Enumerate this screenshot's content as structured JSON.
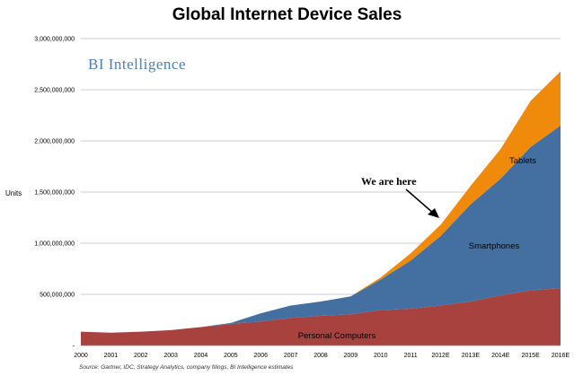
{
  "chart_data": {
    "type": "area",
    "stacked": true,
    "title": "Global Internet Device Sales",
    "ylabel": "Units",
    "xlabel": "",
    "watermark": "BI Intelligence",
    "source": "Source: Gartner, IDC, Strategy Analytics, company filings, BI Intelligence estimates",
    "annotation": "We are here",
    "annotation_target": "2012E",
    "categories": [
      "2000",
      "2001",
      "2002",
      "2003",
      "2004",
      "2005",
      "2006",
      "2007",
      "2008",
      "2009",
      "2010",
      "2011",
      "2012E",
      "2013E",
      "2014E",
      "2015E",
      "2016E"
    ],
    "y_ticks": [
      {
        "value": 0,
        "label": "-"
      },
      {
        "value": 500000000,
        "label": "500,000,000"
      },
      {
        "value": 1000000000,
        "label": "1,000,000,000"
      },
      {
        "value": 1500000000,
        "label": "1,500,000,000"
      },
      {
        "value": 2000000000,
        "label": "2,000,000,000"
      },
      {
        "value": 2500000000,
        "label": "2,500,000,000"
      },
      {
        "value": 3000000000,
        "label": "3,000,000,000"
      }
    ],
    "ylim": [
      0,
      3000000000
    ],
    "grid": true,
    "series": [
      {
        "name": "Personal Computers",
        "color": "#a8423f",
        "values": [
          135000000,
          125000000,
          135000000,
          150000000,
          180000000,
          210000000,
          235000000,
          270000000,
          290000000,
          305000000,
          345000000,
          360000000,
          390000000,
          430000000,
          490000000,
          540000000,
          560000000
        ]
      },
      {
        "name": "Smartphones",
        "color": "#4470a1",
        "values": [
          0,
          0,
          0,
          0,
          0,
          10000000,
          80000000,
          120000000,
          140000000,
          175000000,
          300000000,
          470000000,
          680000000,
          950000000,
          1140000000,
          1400000000,
          1590000000
        ]
      },
      {
        "name": "Tablets",
        "color": "#f08a0a",
        "values": [
          0,
          0,
          0,
          0,
          0,
          0,
          0,
          0,
          0,
          0,
          20000000,
          70000000,
          110000000,
          180000000,
          290000000,
          450000000,
          530000000
        ]
      }
    ]
  }
}
